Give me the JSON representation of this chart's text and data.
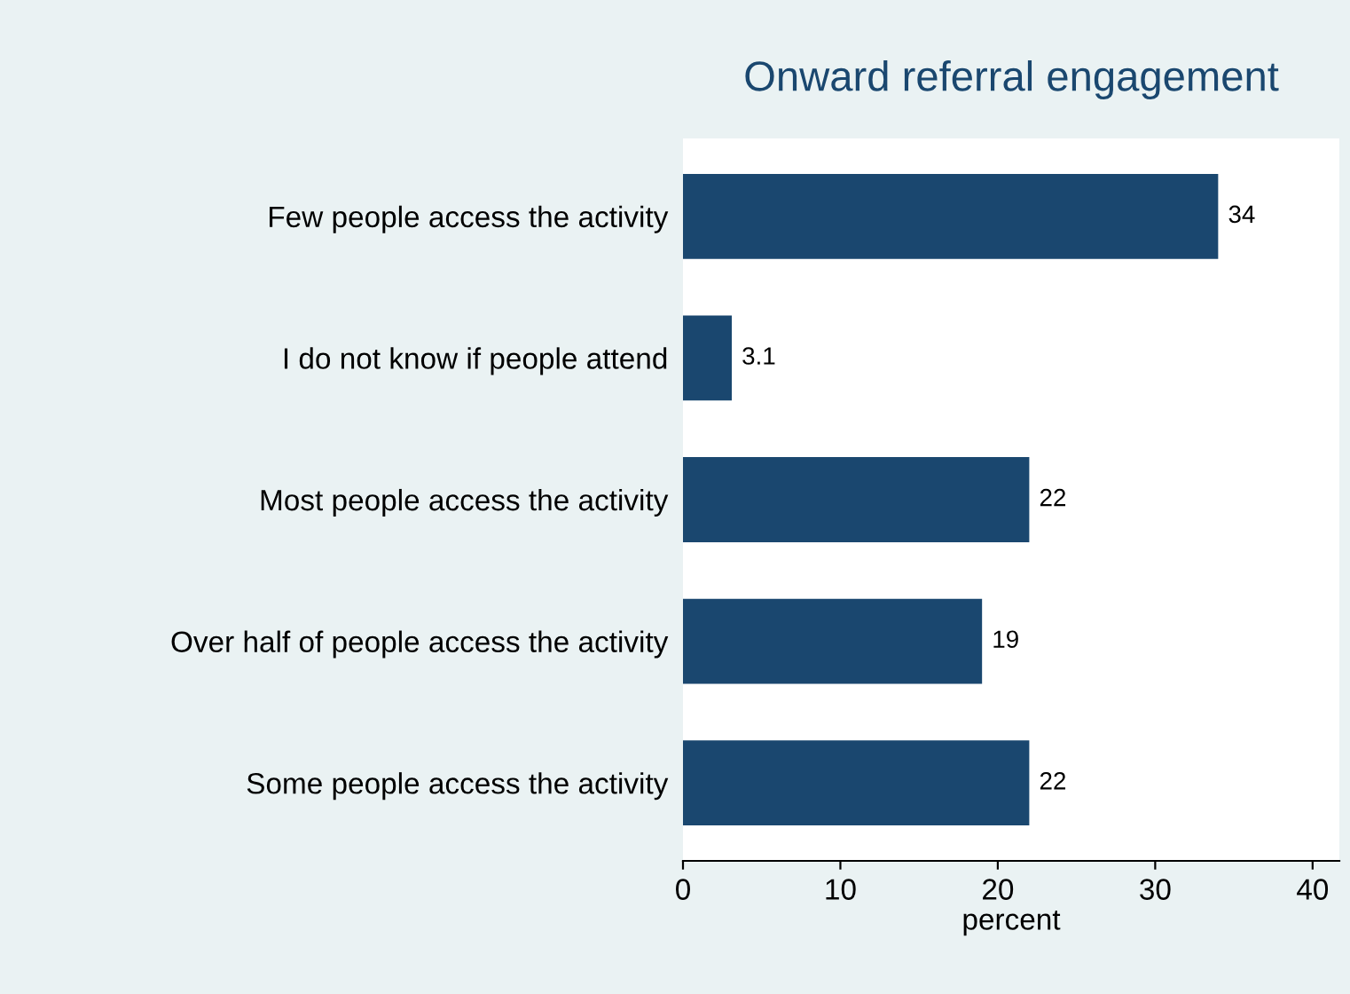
{
  "chart_data": {
    "type": "bar",
    "orientation": "horizontal",
    "title": "Onward referral engagement",
    "xlabel": "percent",
    "categories": [
      "Few people access the activity",
      "I do not know if people attend",
      "Most people access the activity",
      "Over half of people access the activity",
      "Some people access the activity"
    ],
    "values": [
      34,
      3.1,
      22,
      19,
      22
    ],
    "color": "#1a476f",
    "data_labels": true,
    "xlim": [
      0,
      41.7
    ],
    "xticks": [
      0,
      10,
      20,
      30,
      40
    ],
    "grid": false,
    "legend": false
  }
}
